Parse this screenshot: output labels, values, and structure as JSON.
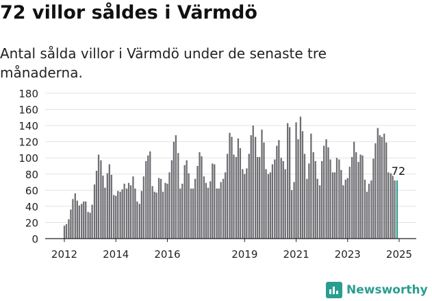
{
  "title": "72 villor såldes i Värmdö",
  "subtitle": "Antal sålda villor i Värmdö under de senaste tre månaderna.",
  "brand": {
    "name": "Newsworthy"
  },
  "colors": {
    "bar": "#6d6d72",
    "highlight": "#2a9d8f",
    "grid": "#e2e2e2",
    "text": "#222222"
  },
  "chart_data": {
    "type": "bar",
    "title": "72 villor såldes i Värmdö",
    "xlabel": "",
    "ylabel": "",
    "ylim": [
      0,
      180
    ],
    "yticks": [
      0,
      20,
      40,
      60,
      80,
      100,
      120,
      140,
      160,
      180
    ],
    "xlim": [
      2012,
      2025
    ],
    "xticks": [
      2012,
      2014,
      2016,
      2019,
      2021,
      2023,
      2025
    ],
    "grid": true,
    "legend": "none",
    "annotation": {
      "label": "72",
      "value": 72,
      "x": 2024.92
    },
    "series": [
      {
        "name": "",
        "x": [
          2012.0,
          2012.08,
          2012.17,
          2012.25,
          2012.33,
          2012.42,
          2012.5,
          2012.58,
          2012.67,
          2012.75,
          2012.83,
          2012.92,
          2013.0,
          2013.08,
          2013.17,
          2013.25,
          2013.33,
          2013.42,
          2013.5,
          2013.58,
          2013.67,
          2013.75,
          2013.83,
          2013.92,
          2014.0,
          2014.08,
          2014.17,
          2014.25,
          2014.33,
          2014.42,
          2014.5,
          2014.58,
          2014.67,
          2014.75,
          2014.83,
          2014.92,
          2015.0,
          2015.08,
          2015.17,
          2015.25,
          2015.33,
          2015.42,
          2015.5,
          2015.58,
          2015.67,
          2015.75,
          2015.83,
          2015.92,
          2016.0,
          2016.08,
          2016.17,
          2016.25,
          2016.33,
          2016.42,
          2016.5,
          2016.58,
          2016.67,
          2016.75,
          2016.83,
          2016.92,
          2017.0,
          2017.08,
          2017.17,
          2017.25,
          2017.33,
          2017.42,
          2017.5,
          2017.58,
          2017.67,
          2017.75,
          2017.83,
          2017.92,
          2018.0,
          2018.08,
          2018.17,
          2018.25,
          2018.33,
          2018.42,
          2018.5,
          2018.58,
          2018.67,
          2018.75,
          2018.83,
          2018.92,
          2019.0,
          2019.08,
          2019.17,
          2019.25,
          2019.33,
          2019.42,
          2019.5,
          2019.58,
          2019.67,
          2019.75,
          2019.83,
          2019.92,
          2020.0,
          2020.08,
          2020.17,
          2020.25,
          2020.33,
          2020.42,
          2020.5,
          2020.58,
          2020.67,
          2020.75,
          2020.83,
          2020.92,
          2021.0,
          2021.08,
          2021.17,
          2021.25,
          2021.33,
          2021.42,
          2021.5,
          2021.58,
          2021.67,
          2021.75,
          2021.83,
          2021.92,
          2022.0,
          2022.08,
          2022.17,
          2022.25,
          2022.33,
          2022.42,
          2022.5,
          2022.58,
          2022.67,
          2022.75,
          2022.83,
          2022.92,
          2023.0,
          2023.08,
          2023.17,
          2023.25,
          2023.33,
          2023.42,
          2023.5,
          2023.58,
          2023.67,
          2023.75,
          2023.83,
          2023.92,
          2024.0,
          2024.08,
          2024.17,
          2024.25,
          2024.33,
          2024.42,
          2024.5,
          2024.58,
          2024.67,
          2024.75,
          2024.83,
          2024.92
        ],
        "values": [
          16,
          18,
          24,
          36,
          49,
          56,
          47,
          41,
          43,
          46,
          46,
          33,
          32,
          42,
          67,
          84,
          104,
          97,
          78,
          63,
          81,
          92,
          79,
          54,
          53,
          59,
          58,
          61,
          68,
          62,
          69,
          66,
          77,
          62,
          46,
          43,
          59,
          77,
          96,
          103,
          108,
          65,
          58,
          57,
          75,
          74,
          58,
          69,
          68,
          82,
          97,
          120,
          128,
          106,
          62,
          68,
          91,
          97,
          81,
          62,
          62,
          74,
          90,
          107,
          102,
          77,
          69,
          63,
          71,
          93,
          92,
          62,
          62,
          70,
          74,
          82,
          105,
          131,
          126,
          104,
          101,
          124,
          112,
          86,
          80,
          87,
          105,
          128,
          140,
          126,
          101,
          101,
          135,
          119,
          86,
          80,
          82,
          92,
          98,
          115,
          122,
          100,
          96,
          86,
          143,
          138,
          60,
          70,
          144,
          123,
          151,
          133,
          105,
          74,
          93,
          130,
          107,
          96,
          74,
          66,
          96,
          115,
          123,
          113,
          98,
          82,
          82,
          100,
          98,
          85,
          66,
          73,
          75,
          89,
          101,
          120,
          107,
          95,
          104,
          103,
          73,
          58,
          68,
          72,
          99,
          118,
          137,
          128,
          126,
          130,
          119,
          82,
          81,
          80,
          72,
          72
        ]
      }
    ]
  }
}
